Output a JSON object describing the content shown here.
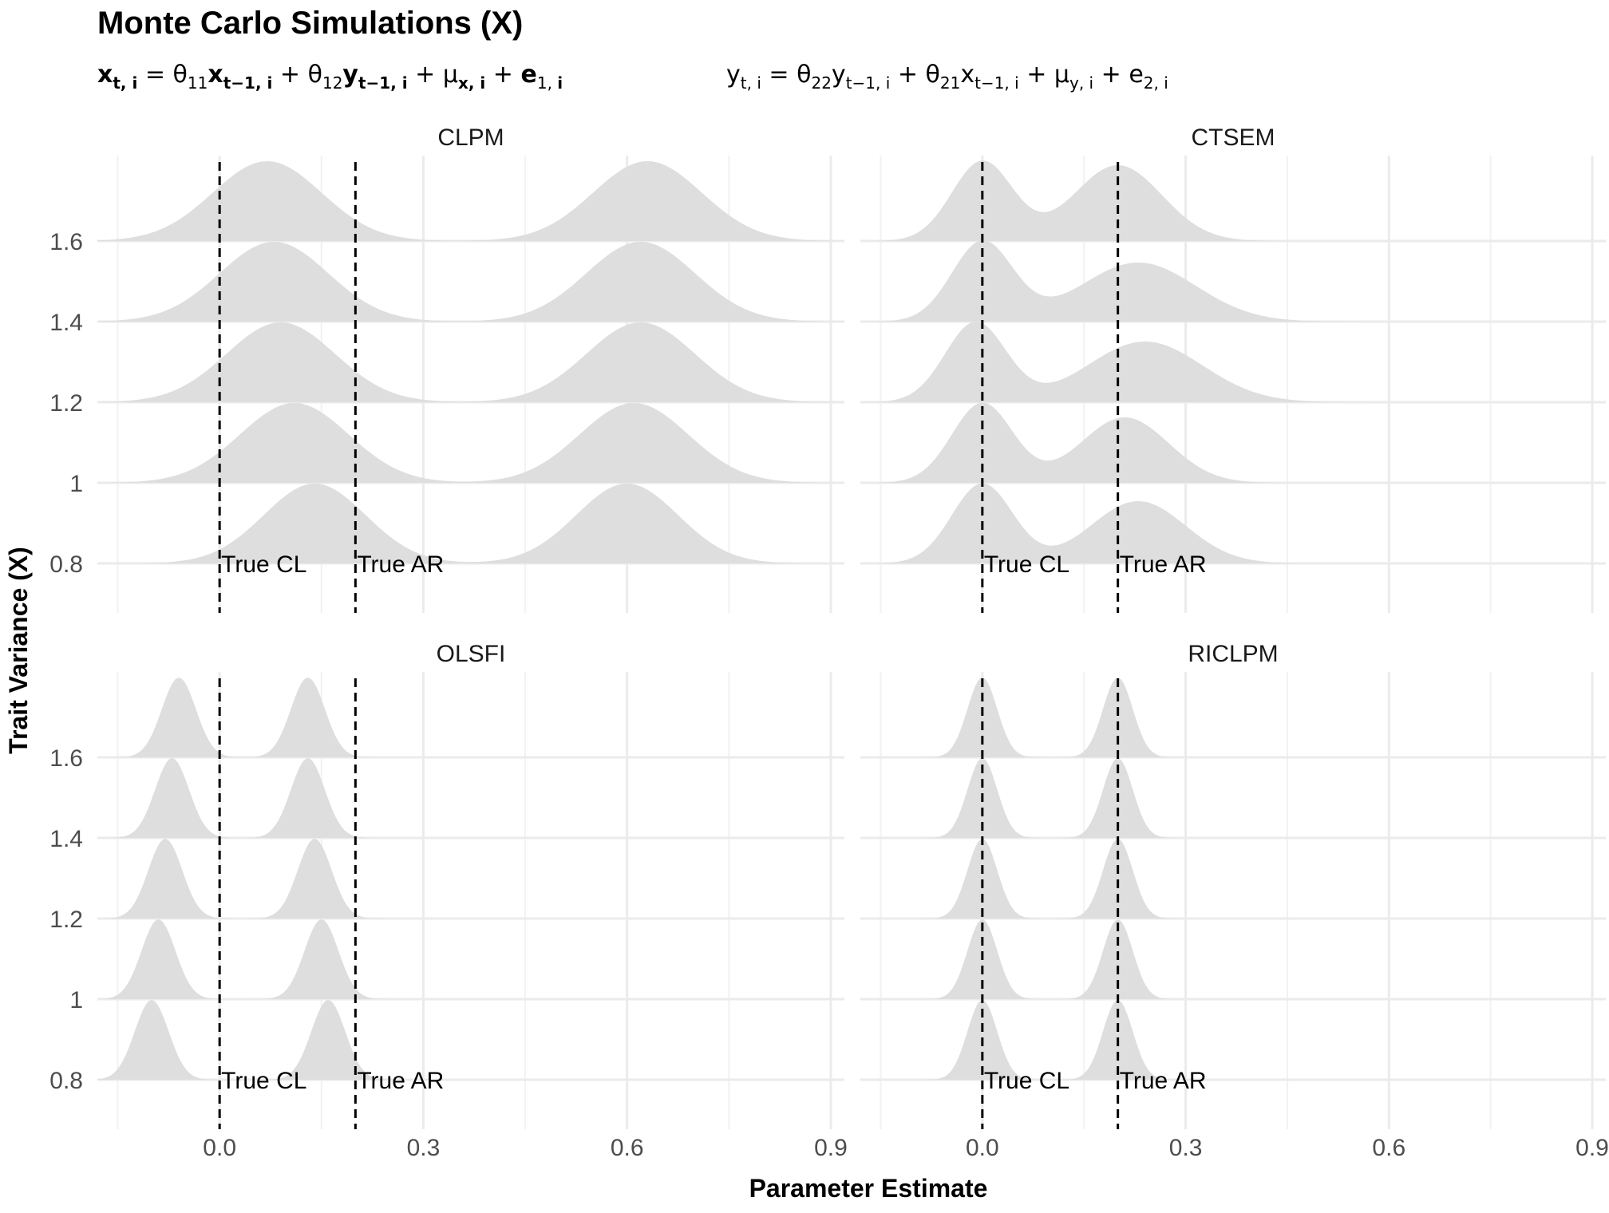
{
  "title": "Monte Carlo Simulations (X)",
  "equation_left": "x_{t,i} = θ11·x_{t−1,i} + θ12·y_{t−1,i} + μ_{x,i} + e_{1,i}",
  "equation_right": "y_{t,i} = θ22·y_{t−1,i} + θ21·x_{t−1,i} + μ_{y,i} + e_{2,i}",
  "chart_data": {
    "type": "ridgeline",
    "xlabel": "Parameter Estimate",
    "ylabel": "Trait Variance (X)",
    "xlim": [
      -0.18,
      0.92
    ],
    "x_ticks": [
      "0.0",
      "0.3",
      "0.6",
      "0.9"
    ],
    "x_tick_values": [
      0.0,
      0.3,
      0.6,
      0.9
    ],
    "y_levels": [
      "0.8",
      "1",
      "1.2",
      "1.4",
      "1.6"
    ],
    "fill_color": "#dedede",
    "grid_color": "#ebebeb",
    "reference_lines": [
      {
        "label": "True CL",
        "x": 0.0
      },
      {
        "label": "True AR",
        "x": 0.2
      }
    ],
    "panels": [
      {
        "name": "CLPM",
        "ridges": [
          {
            "level": "0.8",
            "peaks": [
              {
                "mean": 0.14,
                "sd": 0.075,
                "height": 1.0
              },
              {
                "mean": 0.6,
                "sd": 0.075,
                "height": 1.0
              }
            ]
          },
          {
            "level": "1",
            "peaks": [
              {
                "mean": 0.11,
                "sd": 0.08,
                "height": 1.0
              },
              {
                "mean": 0.61,
                "sd": 0.08,
                "height": 1.0
              }
            ]
          },
          {
            "level": "1.2",
            "peaks": [
              {
                "mean": 0.09,
                "sd": 0.08,
                "height": 1.0
              },
              {
                "mean": 0.62,
                "sd": 0.08,
                "height": 1.0
              }
            ]
          },
          {
            "level": "1.4",
            "peaks": [
              {
                "mean": 0.08,
                "sd": 0.08,
                "height": 1.0
              },
              {
                "mean": 0.62,
                "sd": 0.08,
                "height": 1.0
              }
            ]
          },
          {
            "level": "1.6",
            "peaks": [
              {
                "mean": 0.07,
                "sd": 0.08,
                "height": 1.0
              },
              {
                "mean": 0.63,
                "sd": 0.08,
                "height": 1.0
              }
            ]
          }
        ]
      },
      {
        "name": "CTSEM",
        "ridges": [
          {
            "level": "0.8",
            "peaks": [
              {
                "mean": 0.0,
                "sd": 0.045,
                "height": 1.0
              },
              {
                "mean": 0.23,
                "sd": 0.07,
                "height": 0.78
              }
            ]
          },
          {
            "level": "1",
            "peaks": [
              {
                "mean": 0.0,
                "sd": 0.045,
                "height": 1.0
              },
              {
                "mean": 0.21,
                "sd": 0.065,
                "height": 0.82
              }
            ]
          },
          {
            "level": "1.2",
            "peaks": [
              {
                "mean": -0.01,
                "sd": 0.045,
                "height": 1.0
              },
              {
                "mean": 0.24,
                "sd": 0.085,
                "height": 0.76
              }
            ]
          },
          {
            "level": "1.4",
            "peaks": [
              {
                "mean": 0.0,
                "sd": 0.045,
                "height": 1.0
              },
              {
                "mean": 0.23,
                "sd": 0.085,
                "height": 0.74
              }
            ]
          },
          {
            "level": "1.6",
            "peaks": [
              {
                "mean": 0.0,
                "sd": 0.045,
                "height": 1.0
              },
              {
                "mean": 0.2,
                "sd": 0.065,
                "height": 0.95
              }
            ]
          }
        ]
      },
      {
        "name": "OLSFI",
        "ridges": [
          {
            "level": "0.8",
            "peaks": [
              {
                "mean": -0.1,
                "sd": 0.025,
                "height": 1.0
              },
              {
                "mean": 0.16,
                "sd": 0.025,
                "height": 1.0
              }
            ]
          },
          {
            "level": "1",
            "peaks": [
              {
                "mean": -0.09,
                "sd": 0.025,
                "height": 1.0
              },
              {
                "mean": 0.15,
                "sd": 0.025,
                "height": 1.0
              }
            ]
          },
          {
            "level": "1.2",
            "peaks": [
              {
                "mean": -0.08,
                "sd": 0.025,
                "height": 1.0
              },
              {
                "mean": 0.14,
                "sd": 0.025,
                "height": 1.0
              }
            ]
          },
          {
            "level": "1.4",
            "peaks": [
              {
                "mean": -0.07,
                "sd": 0.025,
                "height": 1.0
              },
              {
                "mean": 0.13,
                "sd": 0.025,
                "height": 1.0
              }
            ]
          },
          {
            "level": "1.6",
            "peaks": [
              {
                "mean": -0.06,
                "sd": 0.025,
                "height": 1.0
              },
              {
                "mean": 0.13,
                "sd": 0.025,
                "height": 1.0
              }
            ]
          }
        ]
      },
      {
        "name": "RICLPM",
        "ridges": [
          {
            "level": "0.8",
            "peaks": [
              {
                "mean": 0.0,
                "sd": 0.022,
                "height": 1.0
              },
              {
                "mean": 0.2,
                "sd": 0.022,
                "height": 1.0
              }
            ]
          },
          {
            "level": "1",
            "peaks": [
              {
                "mean": 0.0,
                "sd": 0.022,
                "height": 1.0
              },
              {
                "mean": 0.2,
                "sd": 0.022,
                "height": 1.0
              }
            ]
          },
          {
            "level": "1.2",
            "peaks": [
              {
                "mean": 0.0,
                "sd": 0.022,
                "height": 1.0
              },
              {
                "mean": 0.2,
                "sd": 0.022,
                "height": 1.0
              }
            ]
          },
          {
            "level": "1.4",
            "peaks": [
              {
                "mean": 0.0,
                "sd": 0.022,
                "height": 1.0
              },
              {
                "mean": 0.2,
                "sd": 0.022,
                "height": 1.0
              }
            ]
          },
          {
            "level": "1.6",
            "peaks": [
              {
                "mean": 0.0,
                "sd": 0.022,
                "height": 1.0
              },
              {
                "mean": 0.2,
                "sd": 0.022,
                "height": 1.0
              }
            ]
          }
        ]
      }
    ]
  }
}
